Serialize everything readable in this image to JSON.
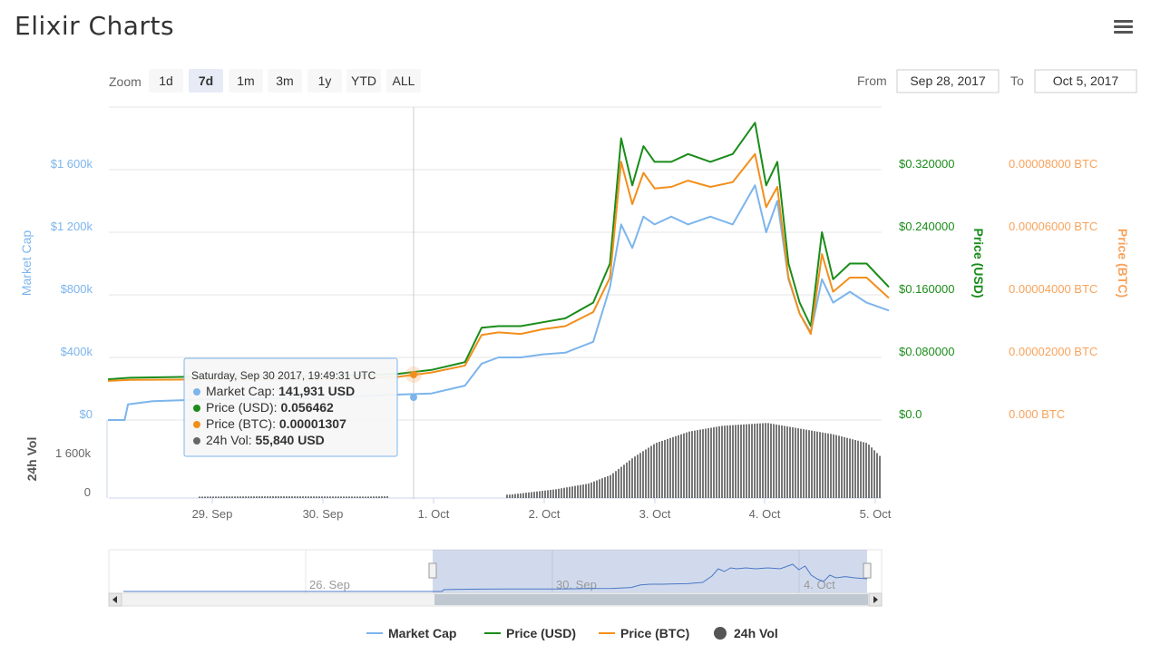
{
  "header": {
    "title": "Elixir Charts",
    "menu_icon": "hamburger-menu-icon"
  },
  "range_selector": {
    "zoom_label": "Zoom",
    "buttons": [
      "1d",
      "7d",
      "1m",
      "3m",
      "1y",
      "YTD",
      "ALL"
    ],
    "active": "7d",
    "from_label": "From",
    "from_value": "Sep 28, 2017",
    "to_label": "To",
    "to_value": "Oct 5, 2017"
  },
  "tooltip": {
    "title": "Saturday, Sep 30 2017, 19:49:31 UTC",
    "rows": [
      {
        "label": "Market Cap",
        "value": "141,931 USD",
        "color": "#7cb5ec"
      },
      {
        "label": "Price (USD)",
        "value": "0.056462",
        "color": "#1a8c1a"
      },
      {
        "label": "Price (BTC)",
        "value": "0.00001307",
        "color": "#f28f1c"
      },
      {
        "label": "24h Vol",
        "value": "55,840 USD",
        "color": "#666666"
      }
    ]
  },
  "navigator": {
    "labels": [
      "26. Sep",
      "30. Sep",
      "4. Oct"
    ]
  },
  "legend": [
    {
      "name": "Market Cap",
      "color": "#7cb5ec",
      "symbol": "line"
    },
    {
      "name": "Price (USD)",
      "color": "#1a8c1a",
      "symbol": "line"
    },
    {
      "name": "Price (BTC)",
      "color": "#f28f1c",
      "symbol": "line"
    },
    {
      "name": "24h Vol",
      "color": "#555555",
      "symbol": "dot"
    }
  ],
  "chart_data": {
    "type": "line",
    "title": "",
    "x_ticks": [
      "29. Sep",
      "30. Sep",
      "1. Oct",
      "2. Oct",
      "3. Oct",
      "4. Oct",
      "5. Oct"
    ],
    "x_range": [
      0,
      7
    ],
    "x_unit_note": "",
    "axes": {
      "market_cap": {
        "label": "Market Cap",
        "ticks": [
          "$0",
          "$400k",
          "$800k",
          "$1 200k",
          "$1 600k"
        ],
        "range": [
          0,
          2000000
        ]
      },
      "price_usd": {
        "label": "Price (USD)",
        "ticks": [
          "$0.0",
          "$0.080000",
          "$0.160000",
          "$0.240000",
          "$0.320000"
        ],
        "range": [
          0,
          0.4
        ]
      },
      "price_btc": {
        "label": "Price (BTC)",
        "ticks": [
          "0.000 BTC",
          "0.00002000 BTC",
          "0.00004000 BTC",
          "0.00006000 BTC",
          "0.00008000 BTC"
        ],
        "range": [
          0,
          0.0001
        ]
      },
      "volume": {
        "label": "24h Vol",
        "ticks": [
          "0",
          "1 600k"
        ],
        "range": [
          0,
          2700000
        ]
      }
    },
    "series": [
      {
        "name": "Market Cap",
        "color": "#7cb5ec",
        "axis": "market_cap",
        "x": [
          0,
          0.15,
          0.18,
          0.4,
          0.8,
          1.2,
          1.6,
          1.95,
          2.0,
          2.5,
          2.9,
          3.2,
          3.35,
          3.5,
          3.7,
          3.9,
          4.1,
          4.35,
          4.5,
          4.6,
          4.7,
          4.8,
          4.9,
          5.05,
          5.2,
          5.4,
          5.6,
          5.8,
          5.9,
          6.0,
          6.1,
          6.2,
          6.3,
          6.4,
          6.5,
          6.65,
          6.8,
          7.0
        ],
        "values": [
          0,
          0,
          100000,
          120000,
          130000,
          135000,
          140000,
          141931,
          142000,
          160000,
          170000,
          220000,
          360000,
          400000,
          400000,
          420000,
          430000,
          500000,
          850000,
          1250000,
          1100000,
          1300000,
          1250000,
          1300000,
          1250000,
          1300000,
          1250000,
          1500000,
          1200000,
          1400000,
          900000,
          680000,
          560000,
          900000,
          750000,
          820000,
          750000,
          700000
        ]
      },
      {
        "name": "Price (USD)",
        "color": "#1a8c1a",
        "axis": "price_usd",
        "x": [
          0,
          0.2,
          0.6,
          1.0,
          1.4,
          1.8,
          1.95,
          2.2,
          2.6,
          2.9,
          3.2,
          3.35,
          3.5,
          3.7,
          3.9,
          4.1,
          4.35,
          4.5,
          4.6,
          4.7,
          4.8,
          4.9,
          5.05,
          5.2,
          5.4,
          5.6,
          5.8,
          5.9,
          6.0,
          6.1,
          6.2,
          6.3,
          6.4,
          6.5,
          6.65,
          6.8,
          7.0
        ],
        "values": [
          0.052,
          0.054,
          0.055,
          0.056,
          0.056,
          0.056,
          0.056462,
          0.057,
          0.059,
          0.064,
          0.074,
          0.118,
          0.12,
          0.12,
          0.125,
          0.13,
          0.15,
          0.2,
          0.36,
          0.3,
          0.35,
          0.33,
          0.33,
          0.34,
          0.33,
          0.34,
          0.38,
          0.3,
          0.33,
          0.2,
          0.15,
          0.12,
          0.24,
          0.18,
          0.2,
          0.2,
          0.17
        ]
      },
      {
        "name": "Price (BTC)",
        "color": "#f28f1c",
        "axis": "price_btc",
        "x": [
          0,
          0.2,
          0.6,
          1.0,
          1.4,
          1.8,
          1.95,
          2.2,
          2.6,
          2.9,
          3.2,
          3.35,
          3.5,
          3.7,
          3.9,
          4.1,
          4.35,
          4.5,
          4.6,
          4.7,
          4.8,
          4.9,
          5.05,
          5.2,
          5.4,
          5.6,
          5.8,
          5.9,
          6.0,
          6.1,
          6.2,
          6.3,
          6.4,
          6.5,
          6.65,
          6.8,
          7.0
        ],
        "values": [
          1.25e-05,
          1.28e-05,
          1.29e-05,
          1.3e-05,
          1.3e-05,
          1.3e-05,
          1.307e-05,
          1.32e-05,
          1.38e-05,
          1.52e-05,
          1.74e-05,
          2.72e-05,
          2.8e-05,
          2.75e-05,
          2.9e-05,
          3e-05,
          3.45e-05,
          4.55e-05,
          8.25e-05,
          6.9e-05,
          7.9e-05,
          7.4e-05,
          7.45e-05,
          7.65e-05,
          7.45e-05,
          7.6e-05,
          8.5e-05,
          6.8e-05,
          7.45e-05,
          4.55e-05,
          3.4e-05,
          2.75e-05,
          5.3e-05,
          4.1e-05,
          4.55e-05,
          4.55e-05,
          3.9e-05
        ]
      },
      {
        "name": "24h Vol",
        "color": "#555555",
        "axis": "volume",
        "type": "column",
        "x": [
          0.8,
          1.5,
          2.3,
          3.6,
          4.0,
          4.3,
          4.5,
          4.7,
          4.9,
          5.2,
          5.5,
          5.9,
          6.2,
          6.5,
          6.8,
          7.0
        ],
        "values": [
          50000,
          60000,
          50000,
          120000,
          300000,
          500000,
          800000,
          1400000,
          1900000,
          2300000,
          2500000,
          2600000,
          2400000,
          2200000,
          1900000,
          1100000
        ]
      }
    ],
    "legend_position": "bottom-center",
    "grid": true
  }
}
